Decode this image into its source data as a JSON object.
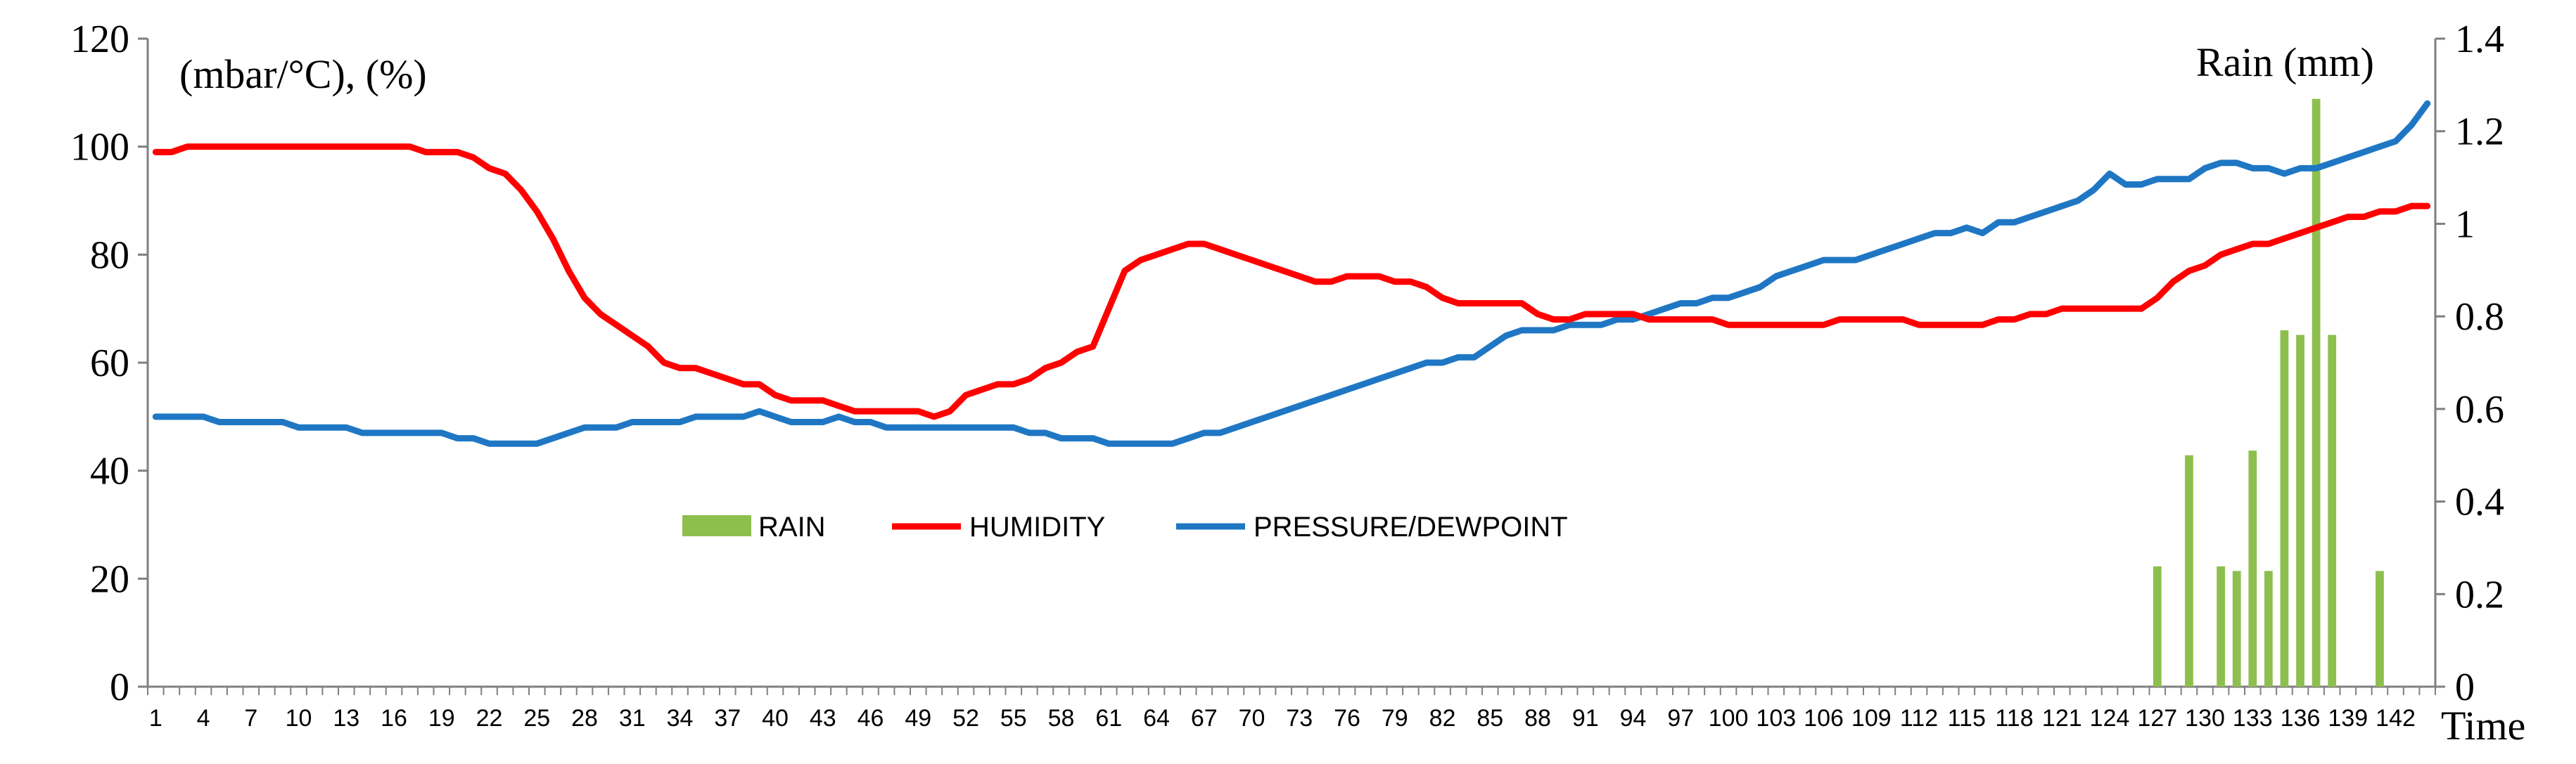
{
  "chart_data": {
    "type": "line",
    "left_axis_label": "(mbar/°C), (%)",
    "right_axis_label": "Rain (mm)",
    "xlabel": "Time",
    "x_range": [
      1,
      144
    ],
    "x_tick_labels": [
      "1",
      "4",
      "7",
      "10",
      "13",
      "16",
      "19",
      "22",
      "25",
      "28",
      "31",
      "34",
      "37",
      "40",
      "43",
      "46",
      "49",
      "52",
      "55",
      "58",
      "61",
      "64",
      "67",
      "70",
      "73",
      "76",
      "79",
      "82",
      "85",
      "88",
      "91",
      "94",
      "97",
      "100",
      "103",
      "106",
      "109",
      "112",
      "115",
      "118",
      "121",
      "124",
      "127",
      "130",
      "133",
      "136",
      "139",
      "142"
    ],
    "left_ylim": [
      0,
      120
    ],
    "left_ticks": [
      "0",
      "20",
      "40",
      "60",
      "80",
      "100",
      "120"
    ],
    "right_ylim": [
      0,
      1.4
    ],
    "right_ticks": [
      "0",
      "0.2",
      "0.4",
      "0.6",
      "0.8",
      "1",
      "1.2",
      "1.4"
    ],
    "legend": [
      "RAIN",
      "HUMIDITY",
      "PRESSURE/DEWPOINT"
    ],
    "colors": {
      "rain": "#8DBF4E",
      "humidity": "#FF0000",
      "pressure": "#1F77C4"
    },
    "series": [
      {
        "name": "HUMIDITY",
        "axis": "left",
        "points": [
          [
            1,
            99
          ],
          [
            2,
            99
          ],
          [
            3,
            100
          ],
          [
            17,
            100
          ],
          [
            18,
            99
          ],
          [
            20,
            99
          ],
          [
            21,
            98
          ],
          [
            22,
            96
          ],
          [
            23,
            95
          ],
          [
            24,
            92
          ],
          [
            25,
            88
          ],
          [
            26,
            83
          ],
          [
            27,
            77
          ],
          [
            28,
            72
          ],
          [
            29,
            69
          ],
          [
            30,
            67
          ],
          [
            31,
            65
          ],
          [
            32,
            63
          ],
          [
            33,
            60
          ],
          [
            34,
            59
          ],
          [
            35,
            59
          ],
          [
            36,
            58
          ],
          [
            37,
            57
          ],
          [
            38,
            56
          ],
          [
            39,
            56
          ],
          [
            40,
            54
          ],
          [
            41,
            53
          ],
          [
            42,
            53
          ],
          [
            43,
            53
          ],
          [
            44,
            52
          ],
          [
            45,
            51
          ],
          [
            46,
            51
          ],
          [
            47,
            51
          ],
          [
            48,
            51
          ],
          [
            49,
            51
          ],
          [
            50,
            50
          ],
          [
            51,
            51
          ],
          [
            52,
            54
          ],
          [
            53,
            55
          ],
          [
            54,
            56
          ],
          [
            55,
            56
          ],
          [
            56,
            57
          ],
          [
            57,
            59
          ],
          [
            58,
            60
          ],
          [
            59,
            62
          ],
          [
            60,
            63
          ],
          [
            61,
            70
          ],
          [
            62,
            77
          ],
          [
            63,
            79
          ],
          [
            64,
            80
          ],
          [
            65,
            81
          ],
          [
            66,
            82
          ],
          [
            67,
            82
          ],
          [
            68,
            81
          ],
          [
            69,
            80
          ],
          [
            70,
            79
          ],
          [
            71,
            78
          ],
          [
            72,
            77
          ],
          [
            73,
            76
          ],
          [
            74,
            75
          ],
          [
            75,
            75
          ],
          [
            76,
            76
          ],
          [
            77,
            76
          ],
          [
            78,
            76
          ],
          [
            79,
            75
          ],
          [
            80,
            75
          ],
          [
            81,
            74
          ],
          [
            82,
            72
          ],
          [
            83,
            71
          ],
          [
            84,
            71
          ],
          [
            85,
            71
          ],
          [
            86,
            71
          ],
          [
            87,
            71
          ],
          [
            88,
            69
          ],
          [
            89,
            68
          ],
          [
            90,
            68
          ],
          [
            91,
            69
          ],
          [
            92,
            69
          ],
          [
            93,
            69
          ],
          [
            94,
            69
          ],
          [
            95,
            68
          ],
          [
            96,
            68
          ],
          [
            97,
            68
          ],
          [
            98,
            68
          ],
          [
            99,
            68
          ],
          [
            100,
            67
          ],
          [
            101,
            67
          ],
          [
            102,
            67
          ],
          [
            103,
            67
          ],
          [
            104,
            67
          ],
          [
            105,
            67
          ],
          [
            106,
            67
          ],
          [
            107,
            68
          ],
          [
            108,
            68
          ],
          [
            109,
            68
          ],
          [
            110,
            68
          ],
          [
            111,
            68
          ],
          [
            112,
            67
          ],
          [
            113,
            67
          ],
          [
            114,
            67
          ],
          [
            115,
            67
          ],
          [
            116,
            67
          ],
          [
            117,
            68
          ],
          [
            118,
            68
          ],
          [
            119,
            69
          ],
          [
            120,
            69
          ],
          [
            121,
            70
          ],
          [
            122,
            70
          ],
          [
            123,
            70
          ],
          [
            124,
            70
          ],
          [
            125,
            70
          ],
          [
            126,
            70
          ],
          [
            127,
            72
          ],
          [
            128,
            75
          ],
          [
            129,
            77
          ],
          [
            130,
            78
          ],
          [
            131,
            80
          ],
          [
            132,
            81
          ],
          [
            133,
            82
          ],
          [
            134,
            82
          ],
          [
            135,
            83
          ],
          [
            136,
            84
          ],
          [
            137,
            85
          ],
          [
            138,
            86
          ],
          [
            139,
            87
          ],
          [
            140,
            87
          ],
          [
            141,
            88
          ],
          [
            142,
            88
          ],
          [
            143,
            89
          ],
          [
            144,
            89
          ]
        ]
      },
      {
        "name": "PRESSURE/DEWPOINT",
        "axis": "left",
        "points": [
          [
            1,
            50
          ],
          [
            2,
            50
          ],
          [
            3,
            50
          ],
          [
            4,
            50
          ],
          [
            5,
            49
          ],
          [
            6,
            49
          ],
          [
            7,
            49
          ],
          [
            8,
            49
          ],
          [
            9,
            49
          ],
          [
            10,
            48
          ],
          [
            11,
            48
          ],
          [
            12,
            48
          ],
          [
            13,
            48
          ],
          [
            14,
            47
          ],
          [
            15,
            47
          ],
          [
            16,
            47
          ],
          [
            17,
            47
          ],
          [
            18,
            47
          ],
          [
            19,
            47
          ],
          [
            20,
            46
          ],
          [
            21,
            46
          ],
          [
            22,
            45
          ],
          [
            23,
            45
          ],
          [
            24,
            45
          ],
          [
            25,
            45
          ],
          [
            26,
            46
          ],
          [
            27,
            47
          ],
          [
            28,
            48
          ],
          [
            29,
            48
          ],
          [
            30,
            48
          ],
          [
            31,
            49
          ],
          [
            32,
            49
          ],
          [
            33,
            49
          ],
          [
            34,
            49
          ],
          [
            35,
            50
          ],
          [
            36,
            50
          ],
          [
            37,
            50
          ],
          [
            38,
            50
          ],
          [
            39,
            51
          ],
          [
            40,
            50
          ],
          [
            41,
            49
          ],
          [
            42,
            49
          ],
          [
            43,
            49
          ],
          [
            44,
            50
          ],
          [
            45,
            49
          ],
          [
            46,
            49
          ],
          [
            47,
            48
          ],
          [
            48,
            48
          ],
          [
            49,
            48
          ],
          [
            50,
            48
          ],
          [
            51,
            48
          ],
          [
            52,
            48
          ],
          [
            53,
            48
          ],
          [
            54,
            48
          ],
          [
            55,
            48
          ],
          [
            56,
            47
          ],
          [
            57,
            47
          ],
          [
            58,
            46
          ],
          [
            59,
            46
          ],
          [
            60,
            46
          ],
          [
            61,
            45
          ],
          [
            62,
            45
          ],
          [
            63,
            45
          ],
          [
            64,
            45
          ],
          [
            65,
            45
          ],
          [
            66,
            46
          ],
          [
            67,
            47
          ],
          [
            68,
            47
          ],
          [
            69,
            48
          ],
          [
            70,
            49
          ],
          [
            71,
            50
          ],
          [
            72,
            51
          ],
          [
            73,
            52
          ],
          [
            74,
            53
          ],
          [
            75,
            54
          ],
          [
            76,
            55
          ],
          [
            77,
            56
          ],
          [
            78,
            57
          ],
          [
            79,
            58
          ],
          [
            80,
            59
          ],
          [
            81,
            60
          ],
          [
            82,
            60
          ],
          [
            83,
            61
          ],
          [
            84,
            61
          ],
          [
            85,
            63
          ],
          [
            86,
            65
          ],
          [
            87,
            66
          ],
          [
            88,
            66
          ],
          [
            89,
            66
          ],
          [
            90,
            67
          ],
          [
            91,
            67
          ],
          [
            92,
            67
          ],
          [
            93,
            68
          ],
          [
            94,
            68
          ],
          [
            95,
            69
          ],
          [
            96,
            70
          ],
          [
            97,
            71
          ],
          [
            98,
            71
          ],
          [
            99,
            72
          ],
          [
            100,
            72
          ],
          [
            101,
            73
          ],
          [
            102,
            74
          ],
          [
            103,
            76
          ],
          [
            104,
            77
          ],
          [
            105,
            78
          ],
          [
            106,
            79
          ],
          [
            107,
            79
          ],
          [
            108,
            79
          ],
          [
            109,
            80
          ],
          [
            110,
            81
          ],
          [
            111,
            82
          ],
          [
            112,
            83
          ],
          [
            113,
            84
          ],
          [
            114,
            84
          ],
          [
            115,
            85
          ],
          [
            116,
            84
          ],
          [
            117,
            86
          ],
          [
            118,
            86
          ],
          [
            119,
            87
          ],
          [
            120,
            88
          ],
          [
            121,
            89
          ],
          [
            122,
            90
          ],
          [
            123,
            92
          ],
          [
            124,
            95
          ],
          [
            125,
            93
          ],
          [
            126,
            93
          ],
          [
            127,
            94
          ],
          [
            128,
            94
          ],
          [
            129,
            94
          ],
          [
            130,
            96
          ],
          [
            131,
            97
          ],
          [
            132,
            97
          ],
          [
            133,
            96
          ],
          [
            134,
            96
          ],
          [
            135,
            95
          ],
          [
            136,
            96
          ],
          [
            137,
            96
          ],
          [
            138,
            97
          ],
          [
            139,
            98
          ],
          [
            140,
            99
          ],
          [
            141,
            100
          ],
          [
            142,
            101
          ],
          [
            143,
            104
          ],
          [
            144,
            108
          ]
        ]
      },
      {
        "name": "RAIN",
        "axis": "right",
        "type": "bar",
        "points": [
          [
            127,
            0.26
          ],
          [
            129,
            0.5
          ],
          [
            131,
            0.26
          ],
          [
            132,
            0.25
          ],
          [
            133,
            0.51
          ],
          [
            134,
            0.25
          ],
          [
            135,
            0.77
          ],
          [
            136,
            0.76
          ],
          [
            137,
            1.27
          ],
          [
            138,
            0.76
          ],
          [
            141,
            0.25
          ]
        ]
      }
    ]
  }
}
